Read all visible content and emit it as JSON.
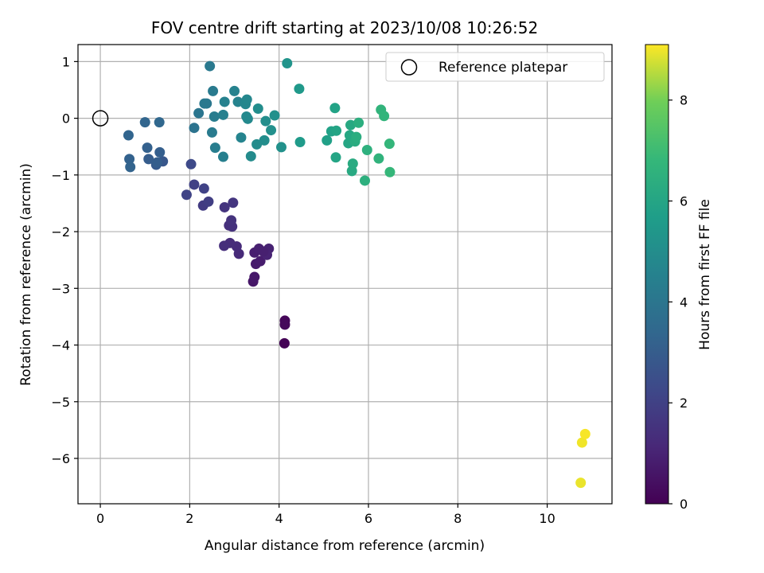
{
  "chart_data": {
    "type": "scatter",
    "title": "FOV centre drift starting at 2023/10/08 10:26:52",
    "xlabel": "Angular distance from reference (arcmin)",
    "ylabel": "Rotation from reference (arcmin)",
    "xlim": [
      -0.5,
      11.45
    ],
    "ylim": [
      -6.8,
      1.3
    ],
    "xticks": [
      0,
      2,
      4,
      6,
      8,
      10
    ],
    "yticks": [
      1,
      0,
      -1,
      -2,
      -3,
      -4,
      -5,
      -6
    ],
    "grid": true,
    "legend": {
      "placement": "top-right",
      "entries": [
        "Reference platepar"
      ]
    },
    "reference_point": {
      "x": 0,
      "y": 0
    },
    "colorbar": {
      "label": "Hours from first FF file",
      "colormap": "viridis",
      "range": [
        0,
        9.1
      ],
      "ticks": [
        0,
        2,
        4,
        6,
        8
      ]
    },
    "points": [
      {
        "x": 4.12,
        "y": -3.97,
        "c": 0.05
      },
      {
        "x": 4.13,
        "y": -3.57,
        "c": 0.15
      },
      {
        "x": 4.13,
        "y": -3.64,
        "c": 0.2
      },
      {
        "x": 3.42,
        "y": -2.88,
        "c": 0.6
      },
      {
        "x": 3.45,
        "y": -2.8,
        "c": 0.65
      },
      {
        "x": 3.48,
        "y": -2.57,
        "c": 0.75
      },
      {
        "x": 3.58,
        "y": -2.52,
        "c": 0.8
      },
      {
        "x": 3.45,
        "y": -2.37,
        "c": 0.85
      },
      {
        "x": 3.55,
        "y": -2.3,
        "c": 0.9
      },
      {
        "x": 3.77,
        "y": -2.3,
        "c": 0.95
      },
      {
        "x": 3.73,
        "y": -2.41,
        "c": 1.0
      },
      {
        "x": 3.65,
        "y": -2.35,
        "c": 0.9
      },
      {
        "x": 3.1,
        "y": -2.39,
        "c": 1.2
      },
      {
        "x": 3.05,
        "y": -2.26,
        "c": 1.25
      },
      {
        "x": 2.9,
        "y": -2.2,
        "c": 1.3
      },
      {
        "x": 2.77,
        "y": -2.25,
        "c": 1.35
      },
      {
        "x": 2.88,
        "y": -1.89,
        "c": 1.4
      },
      {
        "x": 2.95,
        "y": -1.91,
        "c": 1.45
      },
      {
        "x": 2.93,
        "y": -1.8,
        "c": 1.5
      },
      {
        "x": 2.78,
        "y": -1.57,
        "c": 1.55
      },
      {
        "x": 2.97,
        "y": -1.49,
        "c": 1.6
      },
      {
        "x": 2.3,
        "y": -1.54,
        "c": 1.8
      },
      {
        "x": 2.42,
        "y": -1.47,
        "c": 1.9
      },
      {
        "x": 2.1,
        "y": -1.17,
        "c": 2.0
      },
      {
        "x": 2.32,
        "y": -1.24,
        "c": 2.05
      },
      {
        "x": 1.93,
        "y": -1.35,
        "c": 2.1
      },
      {
        "x": 2.03,
        "y": -0.81,
        "c": 2.3
      },
      {
        "x": 1.4,
        "y": -0.76,
        "c": 2.8
      },
      {
        "x": 1.25,
        "y": -0.82,
        "c": 2.9
      },
      {
        "x": 1.08,
        "y": -0.72,
        "c": 3.0
      },
      {
        "x": 1.27,
        "y": -0.78,
        "c": 3.05
      },
      {
        "x": 1.33,
        "y": -0.6,
        "c": 3.1
      },
      {
        "x": 1.05,
        "y": -0.52,
        "c": 3.15
      },
      {
        "x": 0.65,
        "y": -0.72,
        "c": 3.2
      },
      {
        "x": 0.67,
        "y": -0.86,
        "c": 3.25
      },
      {
        "x": 0.63,
        "y": -0.3,
        "c": 3.3
      },
      {
        "x": 1.0,
        "y": -0.07,
        "c": 3.35
      },
      {
        "x": 1.32,
        "y": -0.07,
        "c": 3.4
      },
      {
        "x": 2.1,
        "y": -0.17,
        "c": 3.9
      },
      {
        "x": 2.2,
        "y": 0.09,
        "c": 4.0
      },
      {
        "x": 2.38,
        "y": 0.26,
        "c": 4.05
      },
      {
        "x": 2.33,
        "y": 0.26,
        "c": 4.1
      },
      {
        "x": 2.45,
        "y": 0.92,
        "c": 4.15
      },
      {
        "x": 2.52,
        "y": 0.48,
        "c": 4.2
      },
      {
        "x": 2.5,
        "y": -0.25,
        "c": 4.25
      },
      {
        "x": 2.55,
        "y": 0.03,
        "c": 4.3
      },
      {
        "x": 2.57,
        "y": -0.52,
        "c": 4.35
      },
      {
        "x": 2.75,
        "y": -0.68,
        "c": 4.4
      },
      {
        "x": 2.75,
        "y": 0.06,
        "c": 4.45
      },
      {
        "x": 2.78,
        "y": 0.29,
        "c": 4.5
      },
      {
        "x": 3.0,
        "y": 0.48,
        "c": 4.55
      },
      {
        "x": 3.08,
        "y": 0.29,
        "c": 4.6
      },
      {
        "x": 3.15,
        "y": -0.34,
        "c": 4.65
      },
      {
        "x": 3.25,
        "y": 0.25,
        "c": 4.7
      },
      {
        "x": 3.28,
        "y": 0.33,
        "c": 4.75
      },
      {
        "x": 3.27,
        "y": 0.03,
        "c": 4.8
      },
      {
        "x": 3.3,
        "y": -0.01,
        "c": 4.85
      },
      {
        "x": 3.37,
        "y": -0.67,
        "c": 4.9
      },
      {
        "x": 3.5,
        "y": -0.46,
        "c": 4.95
      },
      {
        "x": 3.53,
        "y": 0.17,
        "c": 5.0
      },
      {
        "x": 3.67,
        "y": -0.39,
        "c": 5.0
      },
      {
        "x": 3.7,
        "y": -0.05,
        "c": 5.05
      },
      {
        "x": 3.82,
        "y": -0.21,
        "c": 5.1
      },
      {
        "x": 3.9,
        "y": 0.05,
        "c": 5.1
      },
      {
        "x": 4.05,
        "y": -0.51,
        "c": 5.15
      },
      {
        "x": 4.18,
        "y": 0.97,
        "c": 5.3
      },
      {
        "x": 4.45,
        "y": 0.52,
        "c": 5.5
      },
      {
        "x": 4.47,
        "y": -0.42,
        "c": 5.55
      },
      {
        "x": 5.07,
        "y": -0.39,
        "c": 5.8
      },
      {
        "x": 5.17,
        "y": -0.23,
        "c": 5.85
      },
      {
        "x": 5.25,
        "y": 0.18,
        "c": 5.9
      },
      {
        "x": 5.28,
        "y": -0.22,
        "c": 5.95
      },
      {
        "x": 5.27,
        "y": -0.69,
        "c": 6.0
      },
      {
        "x": 5.55,
        "y": -0.44,
        "c": 6.05
      },
      {
        "x": 5.58,
        "y": -0.3,
        "c": 6.1
      },
      {
        "x": 5.6,
        "y": -0.12,
        "c": 6.15
      },
      {
        "x": 5.63,
        "y": -0.93,
        "c": 6.2
      },
      {
        "x": 5.65,
        "y": -0.8,
        "c": 6.25
      },
      {
        "x": 5.7,
        "y": -0.41,
        "c": 6.3
      },
      {
        "x": 5.73,
        "y": -0.33,
        "c": 6.35
      },
      {
        "x": 5.78,
        "y": -0.08,
        "c": 6.4
      },
      {
        "x": 5.92,
        "y": -1.1,
        "c": 6.45
      },
      {
        "x": 5.97,
        "y": -0.56,
        "c": 6.5
      },
      {
        "x": 6.23,
        "y": -0.71,
        "c": 6.6
      },
      {
        "x": 6.28,
        "y": 0.15,
        "c": 6.65
      },
      {
        "x": 6.35,
        "y": 0.04,
        "c": 6.7
      },
      {
        "x": 6.47,
        "y": -0.45,
        "c": 6.75
      },
      {
        "x": 6.48,
        "y": -0.95,
        "c": 6.8
      },
      {
        "x": 10.75,
        "y": -6.43,
        "c": 8.95
      },
      {
        "x": 10.78,
        "y": -5.72,
        "c": 9.0
      },
      {
        "x": 10.85,
        "y": -5.57,
        "c": 9.05
      }
    ]
  }
}
